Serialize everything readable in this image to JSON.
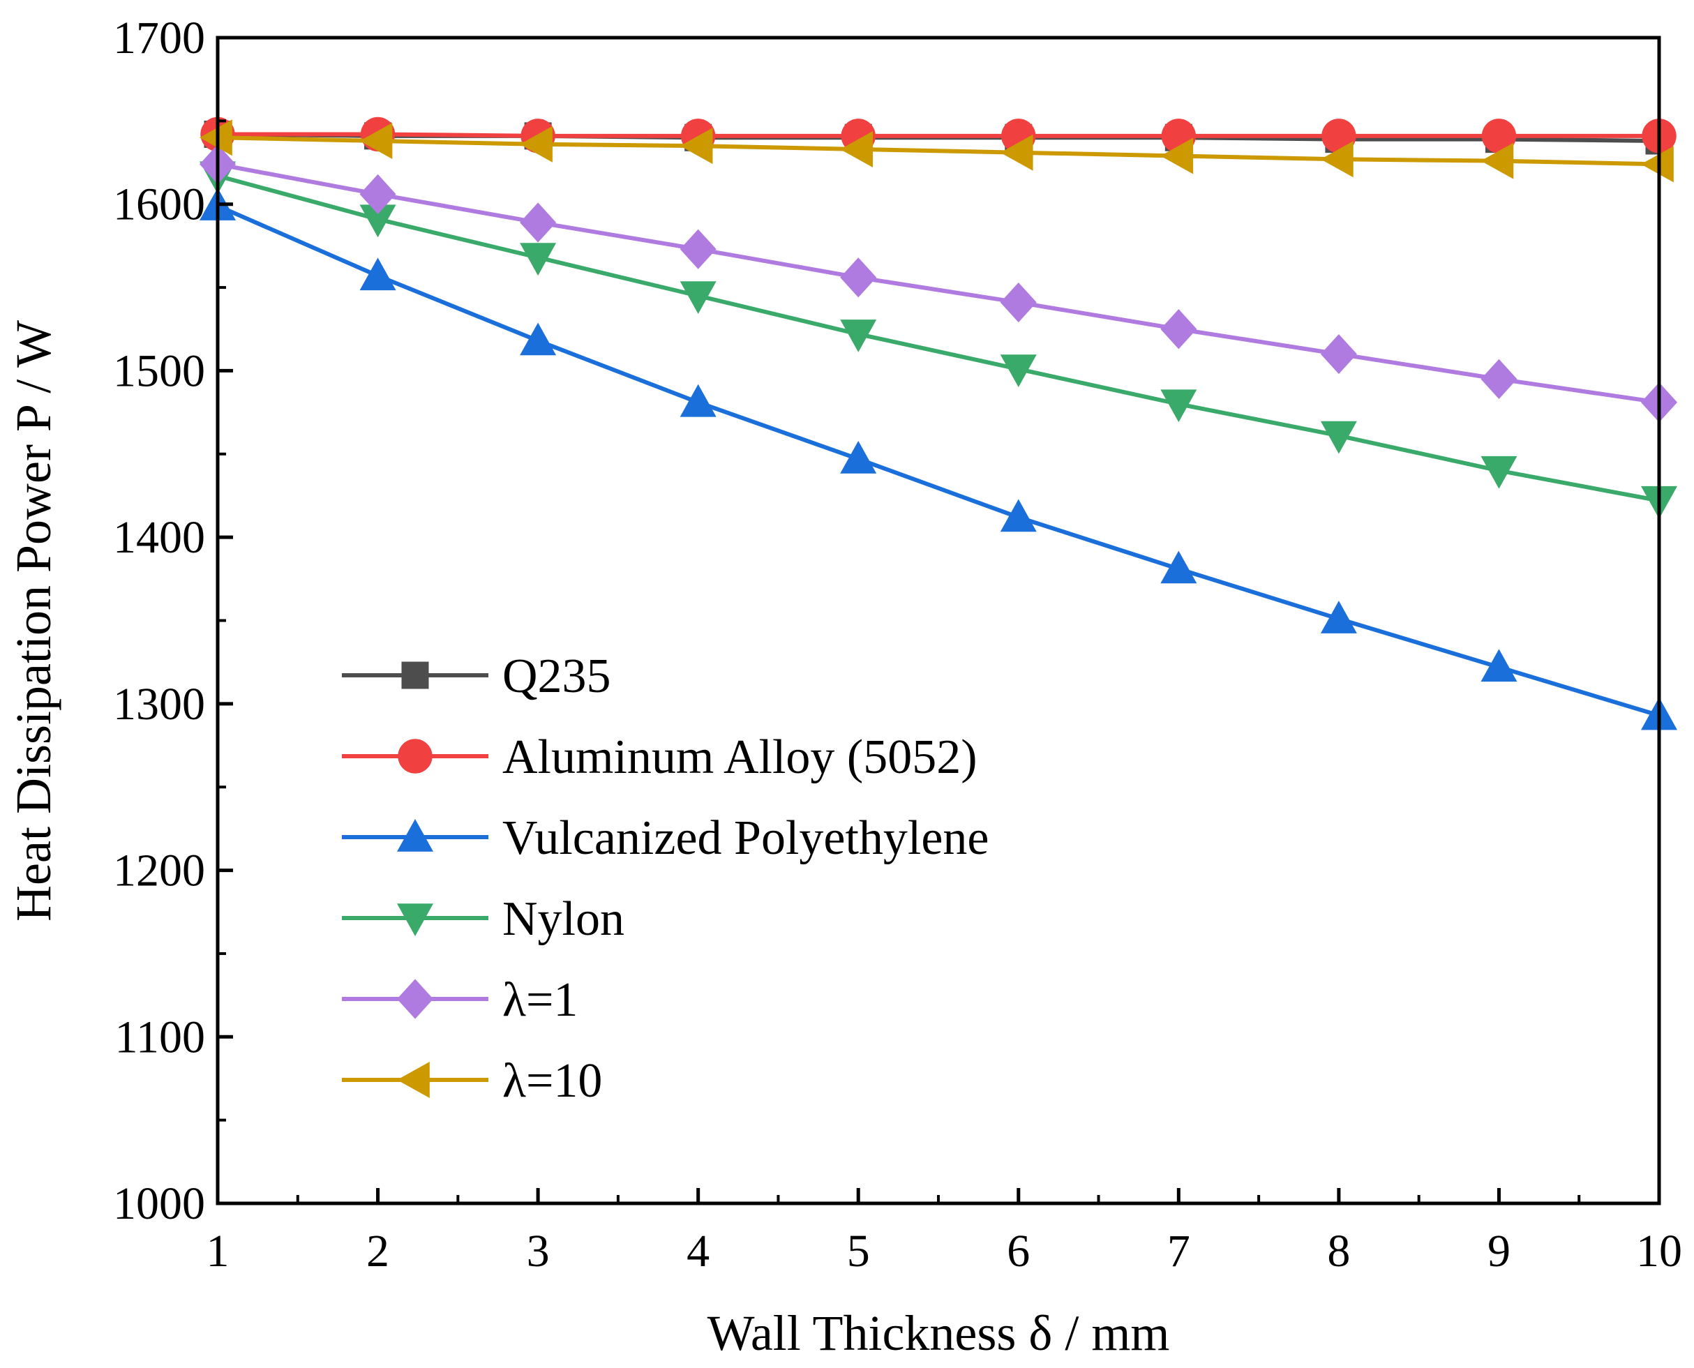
{
  "chart_data": {
    "type": "line",
    "title": "",
    "xlabel": "Wall Thickness  δ / mm",
    "ylabel": "Heat Dissipation Power  P / W",
    "xlim": [
      1,
      10
    ],
    "ylim": [
      1000,
      1700
    ],
    "x": [
      1,
      2,
      3,
      4,
      5,
      6,
      7,
      8,
      9,
      10
    ],
    "xticks": [
      "1",
      "2",
      "3",
      "4",
      "5",
      "6",
      "7",
      "8",
      "9",
      "10"
    ],
    "yticks": [
      "1000",
      "1100",
      "1200",
      "1300",
      "1400",
      "1500",
      "1600",
      "1700"
    ],
    "grid": false,
    "legend_position": "bottom-left",
    "series": [
      {
        "name": "Q235",
        "color": "#4d4d4d",
        "marker": "square",
        "values": [
          1642,
          1641,
          1641,
          1640,
          1640,
          1640,
          1640,
          1639,
          1639,
          1638
        ]
      },
      {
        "name": "Aluminum Alloy (5052)",
        "color": "#f04040",
        "marker": "circle",
        "values": [
          1642,
          1642,
          1641,
          1641,
          1641,
          1641,
          1641,
          1641,
          1641,
          1641
        ]
      },
      {
        "name": "Vulcanized Polyethylene",
        "color": "#1a6fdb",
        "marker": "triangle-up",
        "values": [
          1599,
          1557,
          1518,
          1481,
          1447,
          1412,
          1381,
          1351,
          1322,
          1293
        ]
      },
      {
        "name": "Nylon",
        "color": "#3aaa6a",
        "marker": "triangle-down",
        "values": [
          1617,
          1591,
          1568,
          1545,
          1522,
          1501,
          1480,
          1461,
          1440,
          1422
        ]
      },
      {
        "name": "λ=1",
        "color": "#b07be0",
        "marker": "diamond",
        "values": [
          1624,
          1606,
          1589,
          1573,
          1556,
          1541,
          1525,
          1510,
          1495,
          1481
        ]
      },
      {
        "name": "λ=10",
        "color": "#cc9900",
        "marker": "triangle-left",
        "values": [
          1640,
          1638,
          1636,
          1635,
          1633,
          1631,
          1629,
          1627,
          1626,
          1624
        ]
      }
    ]
  }
}
